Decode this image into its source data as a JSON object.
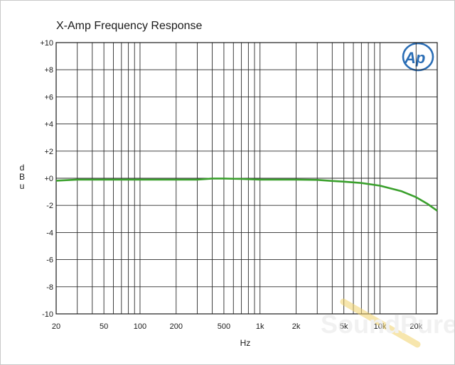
{
  "chart_data": {
    "type": "line",
    "title": "X-Amp Frequency Response",
    "xlabel": "Hz",
    "ylabel": "dBu",
    "x_scale": "log",
    "xlim": [
      20,
      30000
    ],
    "ylim": [
      -10,
      10
    ],
    "grid": true,
    "x_ticks": [
      {
        "value": 20,
        "label": "20"
      },
      {
        "value": 50,
        "label": "50"
      },
      {
        "value": 100,
        "label": "100"
      },
      {
        "value": 200,
        "label": "200"
      },
      {
        "value": 500,
        "label": "500"
      },
      {
        "value": 1000,
        "label": "1k"
      },
      {
        "value": 2000,
        "label": "2k"
      },
      {
        "value": 5000,
        "label": "5k"
      },
      {
        "value": 10000,
        "label": "10k"
      },
      {
        "value": 20000,
        "label": "20k"
      }
    ],
    "y_ticks": [
      {
        "value": 10,
        "label": "+10"
      },
      {
        "value": 8,
        "label": "+8"
      },
      {
        "value": 6,
        "label": "+6"
      },
      {
        "value": 4,
        "label": "+4"
      },
      {
        "value": 2,
        "label": "+2"
      },
      {
        "value": 0,
        "label": "+0"
      },
      {
        "value": -2,
        "label": "-2"
      },
      {
        "value": -4,
        "label": "-4"
      },
      {
        "value": -6,
        "label": "-6"
      },
      {
        "value": -8,
        "label": "-8"
      },
      {
        "value": -10,
        "label": "-10"
      }
    ],
    "series": [
      {
        "color": "#3aa02c",
        "x": [
          20,
          30,
          50,
          100,
          200,
          300,
          400,
          500,
          700,
          1000,
          2000,
          3000,
          4000,
          5000,
          7000,
          10000,
          15000,
          20000,
          25000,
          30000
        ],
        "y": [
          -0.18,
          -0.1,
          -0.1,
          -0.1,
          -0.1,
          -0.1,
          -0.02,
          -0.02,
          -0.05,
          -0.1,
          -0.1,
          -0.12,
          -0.2,
          -0.25,
          -0.35,
          -0.55,
          -0.95,
          -1.4,
          -1.9,
          -2.4
        ]
      }
    ]
  },
  "logo": {
    "text": "Ap",
    "color": "#2a6db5"
  },
  "watermark": {
    "text": "SoundPure"
  }
}
